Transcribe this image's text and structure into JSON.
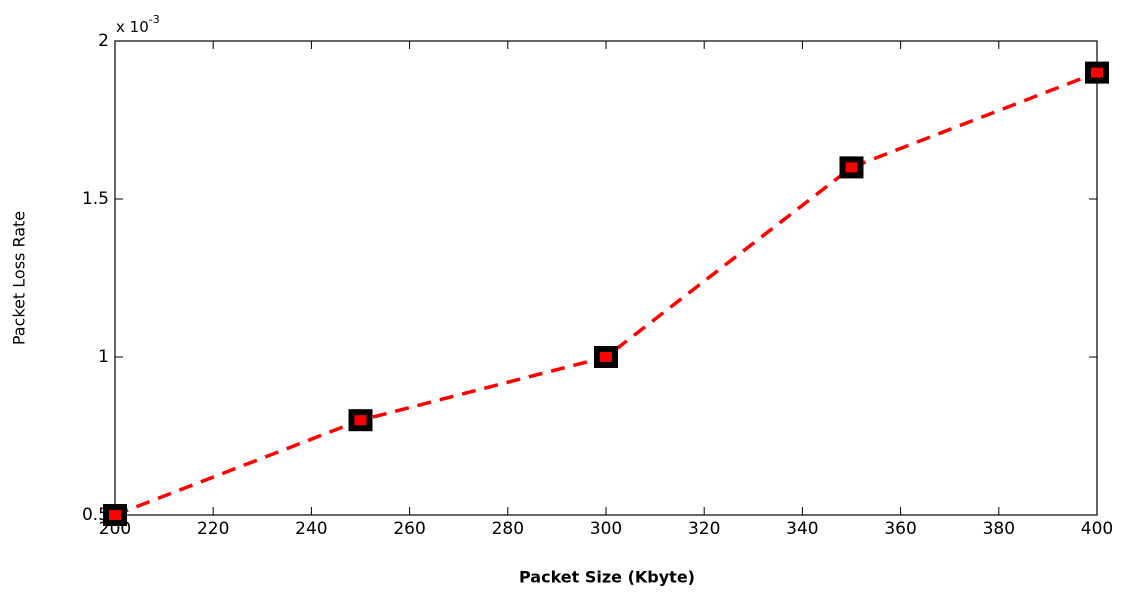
{
  "chart_data": {
    "type": "line",
    "x_label": "Packet Size (Kbyte)",
    "y_label": "Packet Loss Rate",
    "y_scale_base": "x 10",
    "y_scale_exponent": "-3",
    "x": [
      200,
      250,
      300,
      350,
      400
    ],
    "series": [
      {
        "color": "#ff0000",
        "marker_edge_color": "#000000",
        "values": [
          0.5,
          0.8,
          1.0,
          1.6,
          1.9
        ]
      }
    ],
    "xlim": [
      200,
      400
    ],
    "xticks": [
      200,
      220,
      240,
      260,
      280,
      300,
      320,
      340,
      360,
      380,
      400
    ],
    "ylim": [
      0.5,
      2
    ],
    "yticks": [
      0.5,
      1,
      1.5,
      2
    ],
    "grid": false
  }
}
